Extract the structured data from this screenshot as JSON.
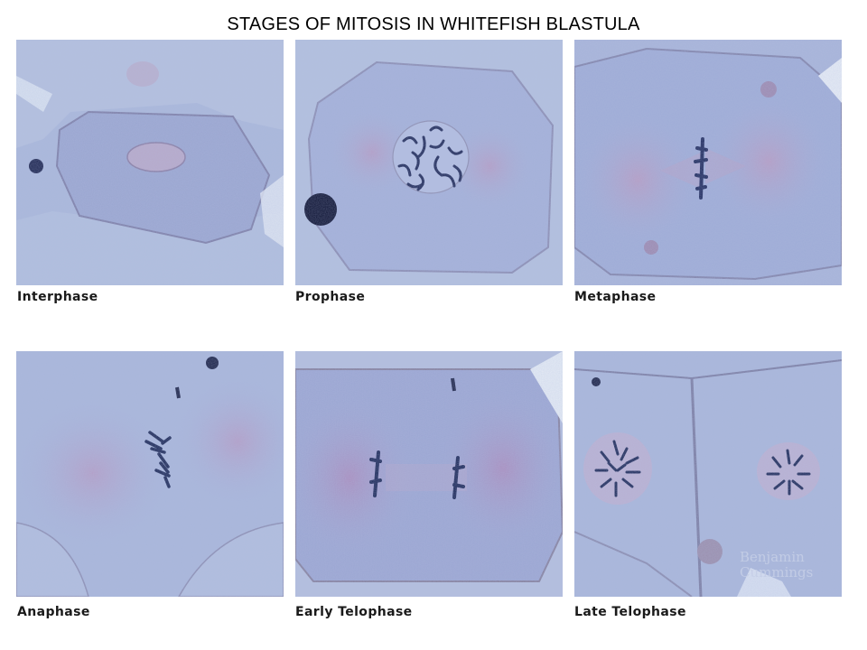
{
  "title": "STAGES OF MITOSIS IN WHITEFISH BLASTULA",
  "panels": [
    {
      "label": "Interphase"
    },
    {
      "label": "Prophase"
    },
    {
      "label": "Metaphase"
    },
    {
      "label": "Anaphase"
    },
    {
      "label": "Early Telophase"
    },
    {
      "label": "Late Telophase"
    }
  ],
  "watermark": "Benjamin Cummings",
  "colors": {
    "background": "#a8b6d8",
    "cytoplasm": "#9aaad2",
    "membrane": "#7f7fa6",
    "chromosomes": "#1c2b5a",
    "aster": "#a898c4"
  }
}
